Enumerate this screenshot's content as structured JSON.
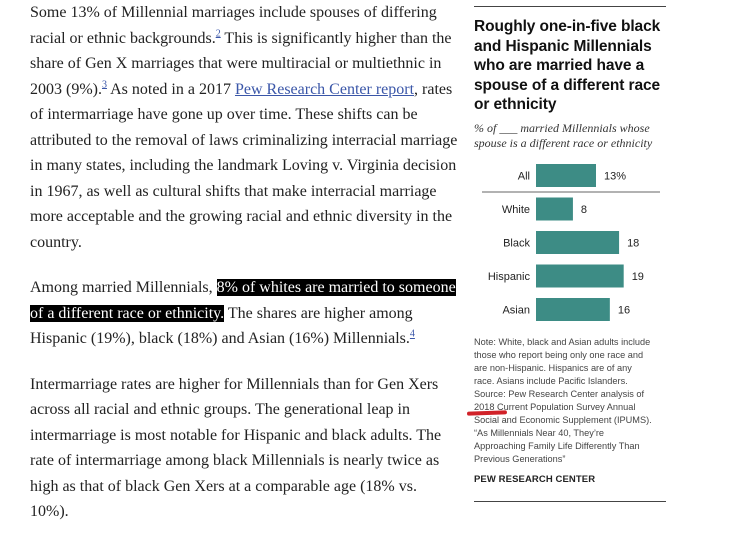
{
  "article": {
    "p1_a": "Some 13% of Millennial marriages include spouses of differing racial or ethnic backgrounds.",
    "p1_fn1": "2",
    "p1_b": " This is significantly higher than the share of Gen X marriages that were multiracial or multiethnic in 2003 (9%).",
    "p1_fn2": "3",
    "p1_c": " As noted in a 2017 ",
    "p1_link": "Pew Research Center report",
    "p1_d": ", rates of intermarriage have gone up over time. These shifts can be attributed to the removal of laws criminalizing interracial marriage in many states, including the landmark Loving v. Virginia decision in 1967, as well as cultural shifts that make interracial marriage more acceptable and the growing racial and ethnic diversity in the country.",
    "p2_a": "Among married Millennials, ",
    "p2_hl": "8% of whites are married to someone of a different race or ethnicity.",
    "p2_b": " The shares are higher among Hispanic (19%), black (18%) and Asian (16%) Millennials.",
    "p2_fn": "4",
    "p3": "Intermarriage rates are higher for Millennials than for Gen Xers across all racial and ethnic groups. The generational leap in intermarriage is most notable for Hispanic and black adults. The rate of intermarriage among black Millennials is nearly twice as high as that of black Gen Xers at a comparable age (18% vs. 10%)."
  },
  "sidebar": {
    "title": "Roughly one-in-five black and Hispanic Millennials who are married have a spouse of a different race or ethnicity",
    "subtitle": "% of ___ married Millennials whose spouse is a different race or ethnicity",
    "note_lines": [
      "Note: White, black and Asian adults include",
      "those who report being only one race and",
      "are non-Hispanic. Hispanics are of any",
      "race. Asians include Pacific Islanders.",
      "Source: Pew Research Center analysis of",
      "2018 Current Population Survey Annual",
      "Social and Economic Supplement (IPUMS).",
      "“As Millennials Near 40, They’re",
      "Approaching Family Life Differently Than",
      "Previous Generations”"
    ],
    "credit": "PEW RESEARCH CENTER"
  },
  "chart_data": {
    "type": "bar",
    "orientation": "horizontal",
    "categories": [
      "All",
      "White",
      "Black",
      "Hispanic",
      "Asian"
    ],
    "values": [
      13,
      8,
      18,
      19,
      16
    ],
    "value_labels": [
      "13%",
      "8",
      "18",
      "19",
      "16"
    ],
    "xlim": [
      0,
      20
    ],
    "bar_color": "#3d8c85",
    "grid": false,
    "legend": "none"
  }
}
